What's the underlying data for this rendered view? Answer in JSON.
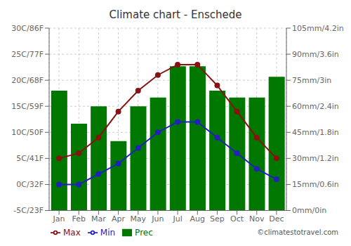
{
  "chart_data": {
    "type": "bar",
    "title": "Climate chart - Enschede",
    "categories": [
      "Jan",
      "Feb",
      "Mar",
      "Apr",
      "May",
      "Jun",
      "Jul",
      "Aug",
      "Sep",
      "Oct",
      "Nov",
      "Dec"
    ],
    "series": [
      {
        "name": "Prec",
        "type": "bar",
        "axis": "y2",
        "color": "#007800",
        "values": [
          69,
          50,
          60,
          40,
          60,
          65,
          83,
          83,
          69,
          65,
          65,
          77
        ]
      },
      {
        "name": "Min",
        "type": "line",
        "color": "#2222bb",
        "marker": "circle",
        "values": [
          0,
          0,
          2,
          4,
          7,
          10,
          12,
          12,
          9,
          6,
          3,
          1
        ]
      },
      {
        "name": "Max",
        "type": "line",
        "color": "#881111",
        "marker": "circle",
        "values": [
          5,
          6,
          9,
          14,
          18,
          21,
          23,
          23,
          19,
          14,
          9,
          5
        ]
      }
    ],
    "ylim": [
      -5,
      30
    ],
    "yticks": [
      {
        "value": -5,
        "label": "-5C/23F"
      },
      {
        "value": 0,
        "label": "0C/32F"
      },
      {
        "value": 5,
        "label": "5C/41F"
      },
      {
        "value": 10,
        "label": "10C/50F"
      },
      {
        "value": 15,
        "label": "15C/59F"
      },
      {
        "value": 20,
        "label": "20C/68F"
      },
      {
        "value": 25,
        "label": "25C/77F"
      },
      {
        "value": 30,
        "label": "30C/86F"
      }
    ],
    "y2lim": [
      0,
      105
    ],
    "y2ticks": [
      {
        "value": 0,
        "label": "0mm/0in"
      },
      {
        "value": 15,
        "label": "15mm/0.6in"
      },
      {
        "value": 30,
        "label": "30mm/1.2in"
      },
      {
        "value": 45,
        "label": "45mm/1.8in"
      },
      {
        "value": 60,
        "label": "60mm/2.4in"
      },
      {
        "value": 75,
        "label": "75mm/3in"
      },
      {
        "value": 90,
        "label": "90mm/3.6in"
      },
      {
        "value": 105,
        "label": "105mm/4.2in"
      }
    ],
    "grid": true,
    "legend": "bottom",
    "annotations": [
      "©climatestotravel.com"
    ]
  }
}
